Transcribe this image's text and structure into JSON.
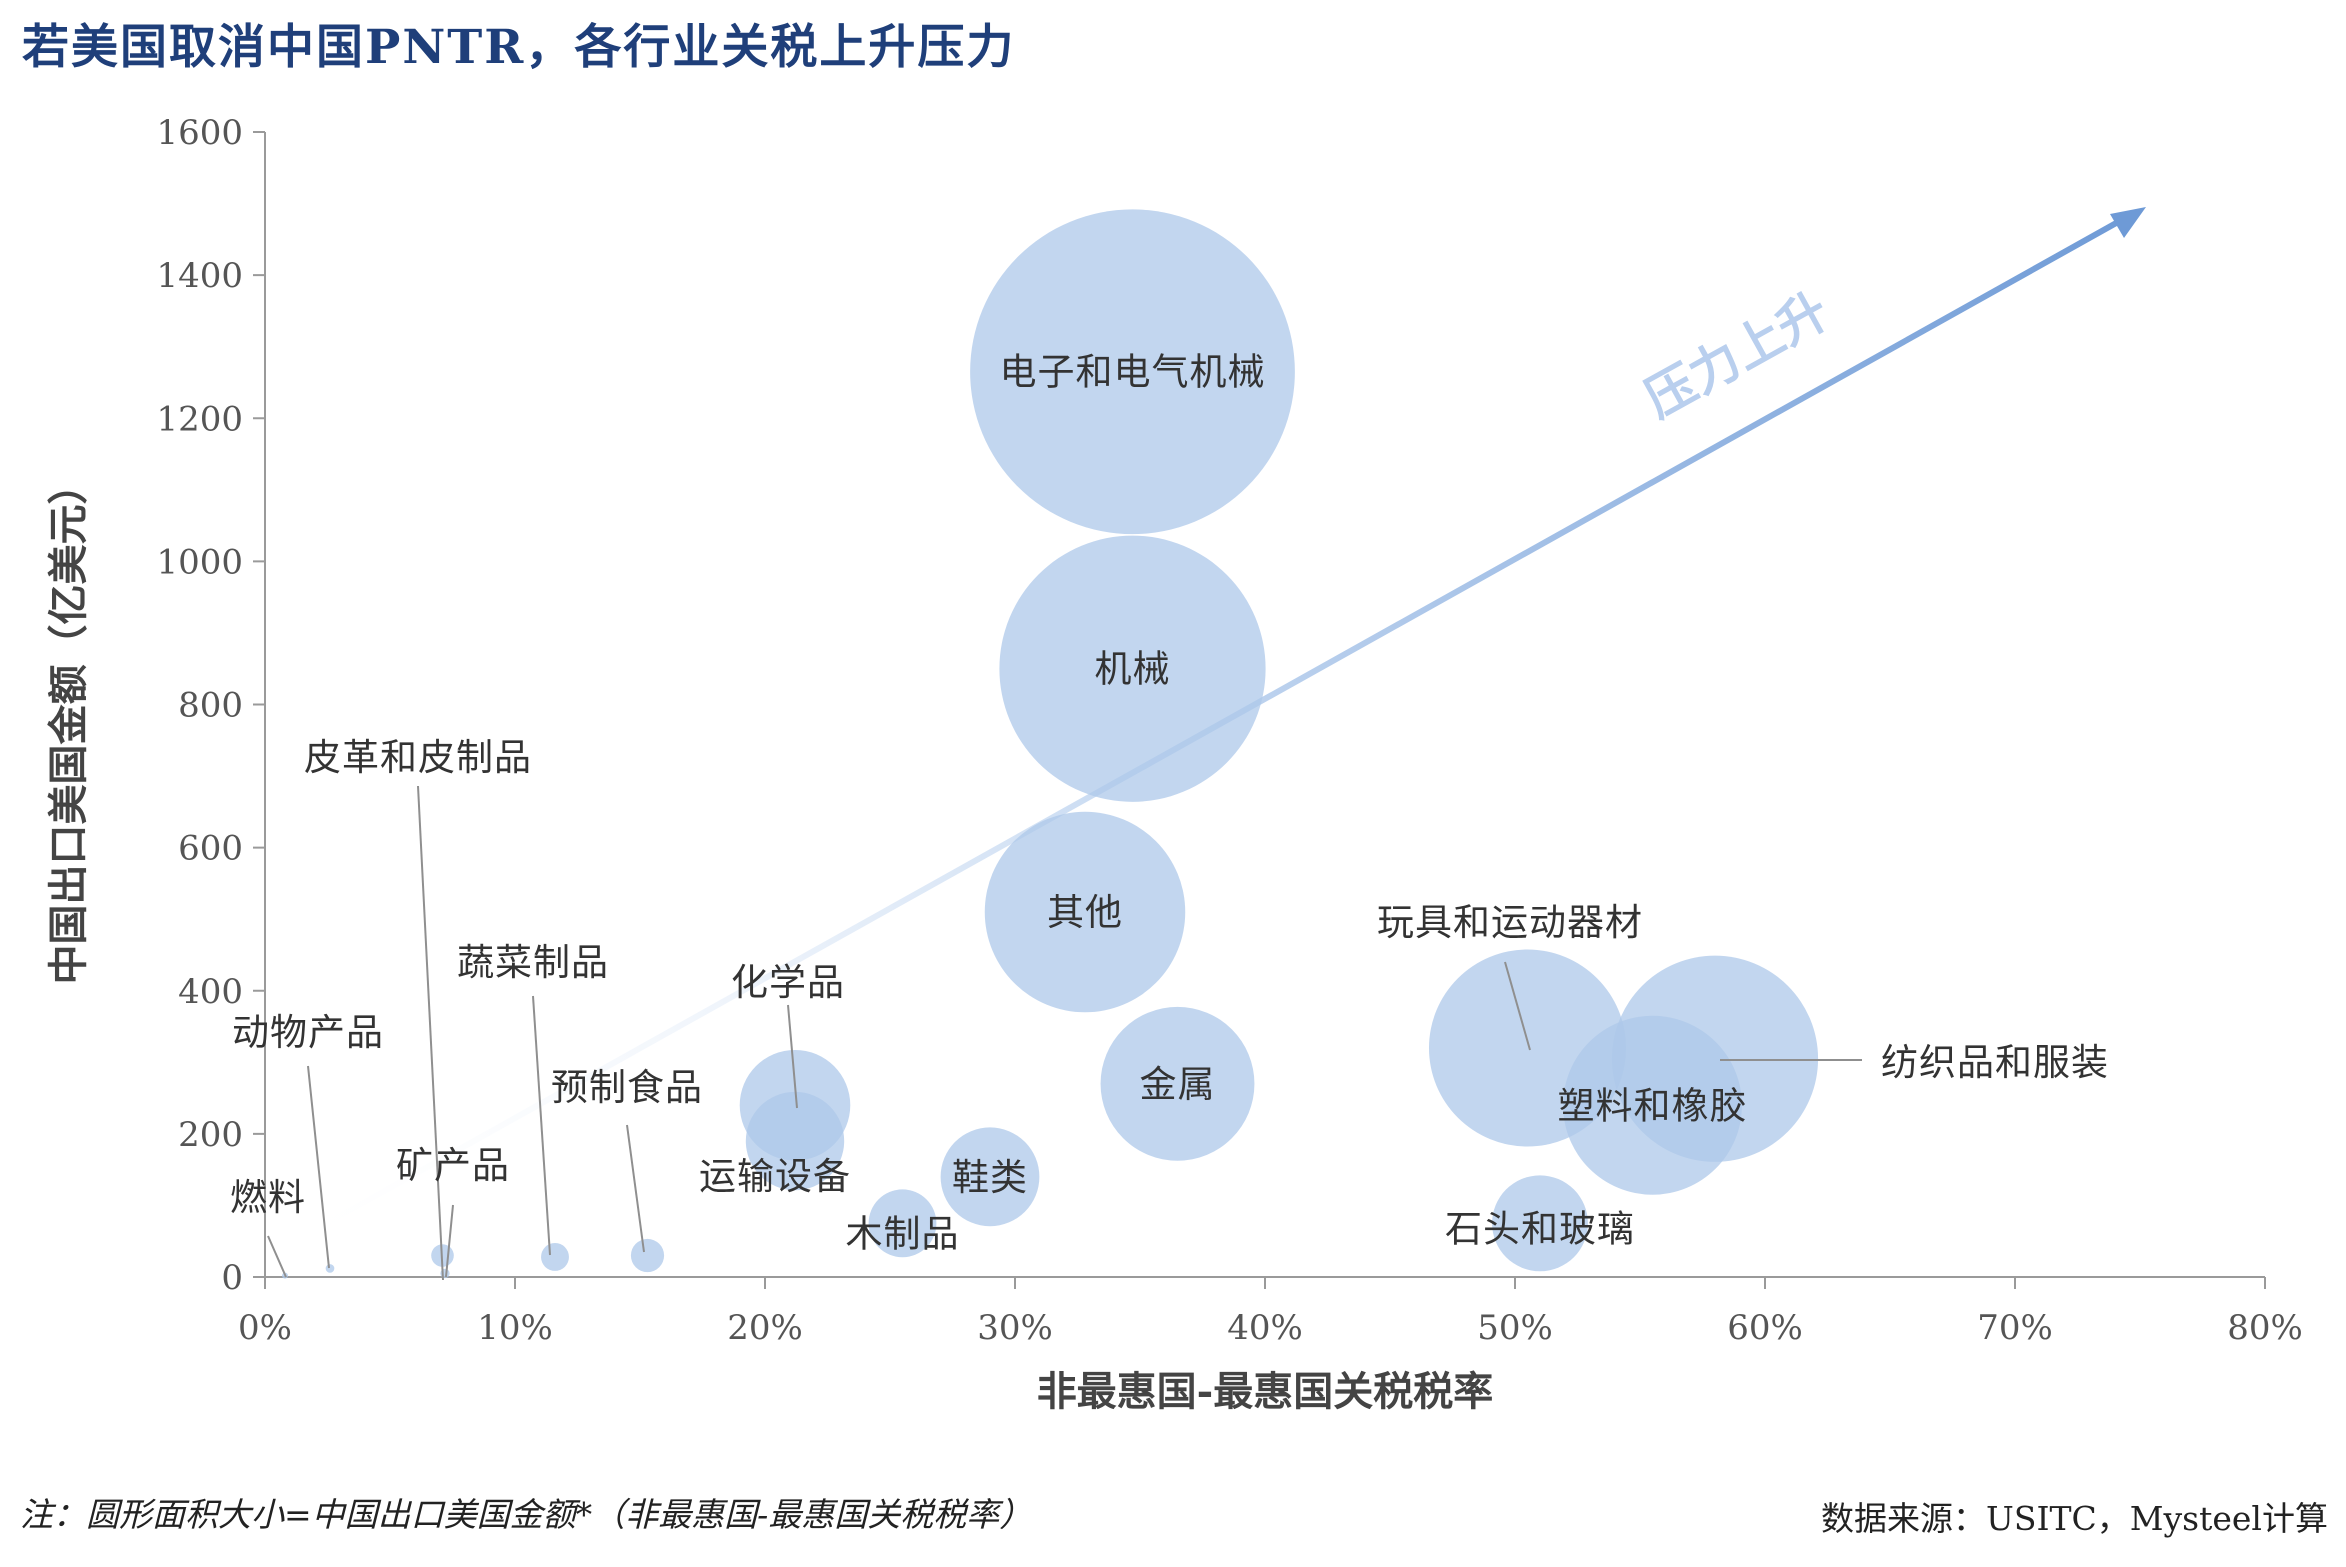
{
  "title": "若美国取消中国PNTR，各行业关税上升压力",
  "note": "注：圆形面积大小=中国出口美国金额*（非最惠国-最惠国关税税率）",
  "source": "数据来源：USITC，Mysteel计算",
  "arrow_label": "压力上升",
  "colors": {
    "bubble": "#aec8ea",
    "bubble_opacity": 0.75,
    "title": "#1f3f7a",
    "arrow": "#6e9ad6",
    "axis": "#9a9a9a",
    "leader": "#8f8f8f"
  },
  "chart_data": {
    "type": "scatter",
    "title": "若美国取消中国PNTR，各行业关税上升压力",
    "xlabel": "非最惠国-最惠国关税税率",
    "ylabel": "中国出口美国金额（亿美元）",
    "xlim": [
      0,
      0.8
    ],
    "ylim": [
      0,
      1600
    ],
    "x_ticks": [
      0,
      0.1,
      0.2,
      0.3,
      0.4,
      0.5,
      0.6,
      0.7,
      0.8
    ],
    "x_tick_labels": [
      "0%",
      "10%",
      "20%",
      "30%",
      "40%",
      "50%",
      "60%",
      "70%",
      "80%"
    ],
    "y_ticks": [
      0,
      200,
      400,
      600,
      800,
      1000,
      1200,
      1400,
      1600
    ],
    "y_tick_labels": [
      "0",
      "200",
      "400",
      "600",
      "800",
      "1000",
      "1200",
      "1400",
      "1600"
    ],
    "grid": false,
    "bubble_size_meaning": "area = export value × tariff difference",
    "points": [
      {
        "name": "电子和电气机械",
        "x": 0.347,
        "y": 1265,
        "size": 438.96
      },
      {
        "name": "机械",
        "x": 0.347,
        "y": 850,
        "size": 294.95
      },
      {
        "name": "其他",
        "x": 0.328,
        "y": 510,
        "size": 167.28
      },
      {
        "name": "金属",
        "x": 0.365,
        "y": 270,
        "size": 98.55
      },
      {
        "name": "玩具和运动器材",
        "x": 0.505,
        "y": 320,
        "size": 161.6
      },
      {
        "name": "纺织品和服装",
        "x": 0.58,
        "y": 305,
        "size": 176.9
      },
      {
        "name": "塑料和橡胶",
        "x": 0.555,
        "y": 240,
        "size": 133.2
      },
      {
        "name": "石头和玻璃",
        "x": 0.51,
        "y": 75,
        "size": 38.25
      },
      {
        "name": "化学品",
        "x": 0.212,
        "y": 240,
        "size": 50.88
      },
      {
        "name": "运输设备",
        "x": 0.212,
        "y": 190,
        "size": 40.28
      },
      {
        "name": "鞋类",
        "x": 0.29,
        "y": 140,
        "size": 40.6
      },
      {
        "name": "木制品",
        "x": 0.255,
        "y": 75,
        "size": 19.13
      },
      {
        "name": "预制食品",
        "x": 0.153,
        "y": 30,
        "size": 4.59
      },
      {
        "name": "蔬菜制品",
        "x": 0.116,
        "y": 28,
        "size": 3.25
      },
      {
        "name": "皮革和皮制品",
        "x": 0.071,
        "y": 30,
        "size": 2.13
      },
      {
        "name": "矿产品",
        "x": 0.072,
        "y": 5,
        "size": 0.36
      },
      {
        "name": "动物产品",
        "x": 0.026,
        "y": 12,
        "size": 0.31
      },
      {
        "name": "燃料",
        "x": 0.008,
        "y": 2,
        "size": 0.02
      }
    ]
  }
}
